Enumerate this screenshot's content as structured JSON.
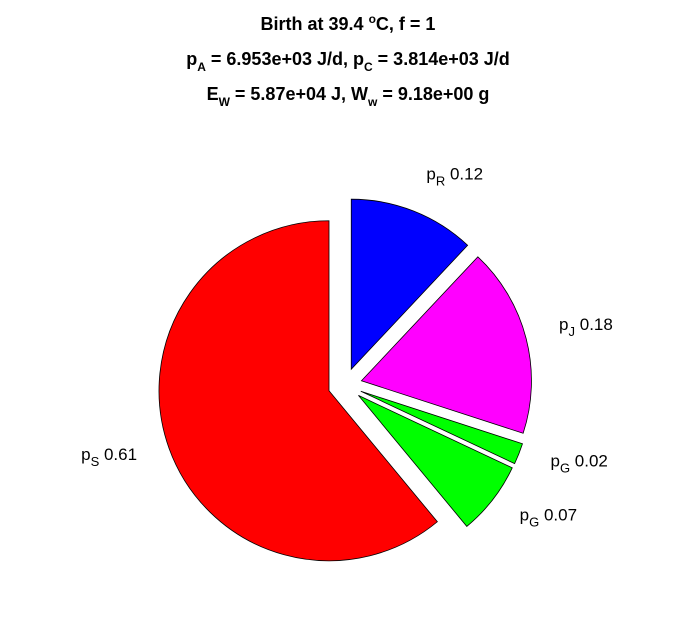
{
  "chart_data": {
    "type": "pie",
    "title": [
      [
        "Birth at 39.4 ",
        {
          "sup": "o"
        },
        "C, f = 1"
      ],
      [
        "p",
        {
          "sub": "A"
        },
        " = 6.953e+03 J/d, p",
        {
          "sub": "C"
        },
        " = 3.814e+03 J/d"
      ],
      [
        "E",
        {
          "sub": "W"
        },
        " = 5.87e+04 J, W",
        {
          "sub": "w"
        },
        " = 9.18e+00 g"
      ]
    ],
    "categories": [
      {
        "name": "p",
        "sub": "R"
      },
      {
        "name": "p",
        "sub": "J"
      },
      {
        "name": "p",
        "sub": "G"
      },
      {
        "name": "p",
        "sub": "G"
      },
      {
        "name": "p",
        "sub": "S"
      }
    ],
    "values": [
      0.12,
      0.18,
      0.02,
      0.07,
      0.61
    ],
    "colors": [
      "#0000ff",
      "#ff00ff",
      "#00ff00",
      "#00ff00",
      "#ff0000"
    ],
    "explode": [
      1,
      1,
      1,
      1,
      1
    ]
  }
}
